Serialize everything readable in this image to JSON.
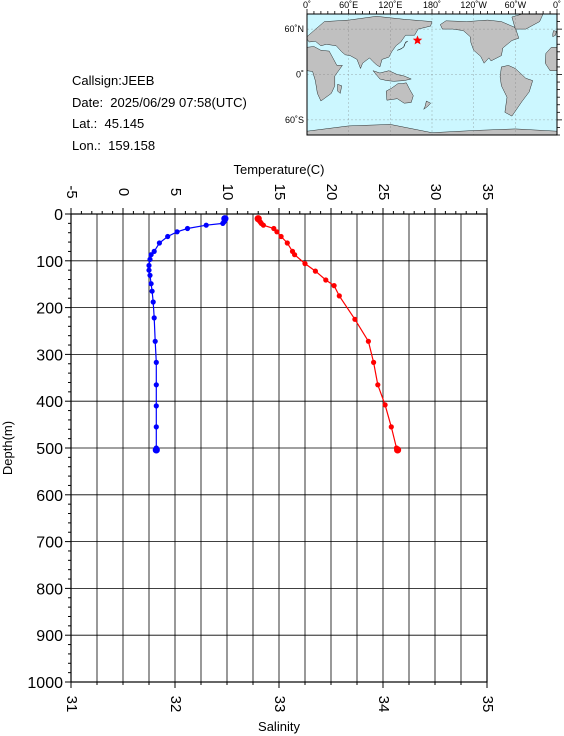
{
  "info": {
    "callsign": "Callsign:JEEB",
    "date": "Date:  2025/06/29 07:58(UTC)",
    "lat": "Lat.:  45.145",
    "lon": "Lon.:  159.158"
  },
  "map": {
    "lon_labels": [
      "0˚",
      "60˚E",
      "120˚E",
      "180˚",
      "120˚W",
      "60˚W",
      "0˚"
    ],
    "lat_labels": [
      "60˚N",
      "0˚",
      "60˚S"
    ],
    "station": {
      "lat": 45.145,
      "lon": 159.158
    },
    "colors": {
      "ocean": "#ccf7ff",
      "land": "#c0c0c0",
      "marker": "#ff0000"
    }
  },
  "chart_data": {
    "type": "line",
    "top_axis": {
      "label": "Temperature(C)",
      "range": [
        -5,
        35
      ],
      "ticks": [
        "-5",
        "0",
        "5",
        "10",
        "15",
        "20",
        "25",
        "30",
        "35"
      ]
    },
    "bottom_axis": {
      "label": "Salinity",
      "range": [
        31,
        35
      ],
      "ticks": [
        "31",
        "32",
        "33",
        "34",
        "35"
      ]
    },
    "y_axis": {
      "label": "Depth(m)",
      "range": [
        0,
        1000
      ],
      "inverted": true,
      "ticks": [
        "0",
        "100",
        "200",
        "300",
        "400",
        "500",
        "600",
        "700",
        "800",
        "900",
        "1000"
      ]
    },
    "grid": true,
    "series": [
      {
        "quantity": "salinity",
        "axis": "bottom",
        "color": "#0000ff",
        "points": [
          [
            32.48,
            10
          ],
          [
            32.48,
            14
          ],
          [
            32.47,
            17
          ],
          [
            32.46,
            20
          ],
          [
            32.3,
            24
          ],
          [
            32.12,
            31
          ],
          [
            32.02,
            38
          ],
          [
            31.93,
            48
          ],
          [
            31.85,
            62
          ],
          [
            31.8,
            80
          ],
          [
            31.77,
            87
          ],
          [
            31.76,
            97
          ],
          [
            31.75,
            110
          ],
          [
            31.75,
            120
          ],
          [
            31.76,
            131
          ],
          [
            31.77,
            149
          ],
          [
            31.78,
            165
          ],
          [
            31.79,
            188
          ],
          [
            31.8,
            222
          ],
          [
            31.81,
            272
          ],
          [
            31.82,
            317
          ],
          [
            31.82,
            365
          ],
          [
            31.82,
            410
          ],
          [
            31.82,
            455
          ],
          [
            31.82,
            500
          ],
          [
            31.82,
            504
          ]
        ]
      },
      {
        "quantity": "temperature",
        "axis": "top",
        "color": "#ff0000",
        "points": [
          [
            13.0,
            10
          ],
          [
            13.1,
            14
          ],
          [
            13.2,
            17
          ],
          [
            13.3,
            20
          ],
          [
            13.5,
            24
          ],
          [
            14.5,
            31
          ],
          [
            14.8,
            38
          ],
          [
            15.2,
            48
          ],
          [
            15.8,
            62
          ],
          [
            16.3,
            80
          ],
          [
            16.5,
            87
          ],
          [
            17.5,
            106
          ],
          [
            18.5,
            122
          ],
          [
            19.5,
            141
          ],
          [
            20.3,
            153
          ],
          [
            20.8,
            175
          ],
          [
            22.3,
            225
          ],
          [
            23.6,
            272
          ],
          [
            24.1,
            317
          ],
          [
            24.5,
            365
          ],
          [
            25.2,
            408
          ],
          [
            25.8,
            455
          ],
          [
            26.3,
            500
          ],
          [
            26.4,
            504
          ]
        ]
      }
    ]
  }
}
